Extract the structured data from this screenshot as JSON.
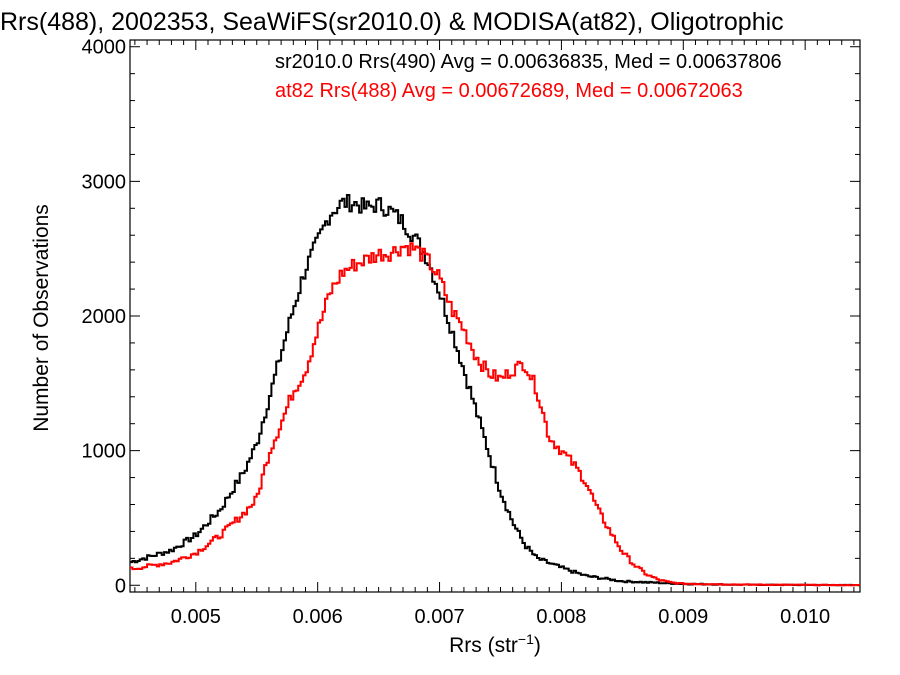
{
  "chart_data": {
    "type": "line",
    "style": "step histogram",
    "title": "Rrs(488), 2002353, SeaWiFS(sr2010.0) & MODISA(at82), Oligotrophic",
    "xlabel": {
      "base": "Rrs (str",
      "sup": "−1",
      "close": ")"
    },
    "ylabel": "Number of Observations",
    "xlim": [
      0.00446,
      0.01045
    ],
    "ylim": [
      -50,
      4050
    ],
    "xticks": [
      0.005,
      0.006,
      0.007,
      0.008,
      0.009,
      0.01
    ],
    "xtick_labels": [
      "0.005",
      "0.006",
      "0.007",
      "0.008",
      "0.009",
      "0.010"
    ],
    "yticks": [
      0,
      1000,
      2000,
      3000,
      4000
    ],
    "ytick_labels": [
      "0",
      "1000",
      "2000",
      "3000",
      "4000"
    ],
    "grid": false,
    "legend_position": "top-right",
    "series": [
      {
        "name": "sr2010.0 Rrs(490) Avg = 0.00636835, Med = 0.00637806",
        "color": "#000000",
        "points": [
          [
            0.00446,
            170
          ],
          [
            0.0048,
            260
          ],
          [
            0.005,
            370
          ],
          [
            0.0052,
            560
          ],
          [
            0.0054,
            850
          ],
          [
            0.0055,
            1050
          ],
          [
            0.0056,
            1380
          ],
          [
            0.0057,
            1720
          ],
          [
            0.0058,
            2050
          ],
          [
            0.0059,
            2350
          ],
          [
            0.006,
            2550
          ],
          [
            0.0061,
            2760
          ],
          [
            0.0062,
            2840
          ],
          [
            0.0063,
            2840
          ],
          [
            0.0064,
            2800
          ],
          [
            0.0065,
            2830
          ],
          [
            0.0066,
            2780
          ],
          [
            0.0067,
            2700
          ],
          [
            0.0068,
            2580
          ],
          [
            0.0069,
            2430
          ],
          [
            0.007,
            2180
          ],
          [
            0.0071,
            1900
          ],
          [
            0.0072,
            1600
          ],
          [
            0.0073,
            1300
          ],
          [
            0.0074,
            1000
          ],
          [
            0.0075,
            700
          ],
          [
            0.0076,
            470
          ],
          [
            0.0077,
            300
          ],
          [
            0.0078,
            200
          ],
          [
            0.008,
            130
          ],
          [
            0.0082,
            70
          ],
          [
            0.0085,
            30
          ],
          [
            0.009,
            10
          ],
          [
            0.0095,
            4
          ],
          [
            0.01045,
            1
          ]
        ]
      },
      {
        "name": "at82 Rrs(488) Avg = 0.00672689, Med = 0.00672063",
        "color": "#ff0000",
        "points": [
          [
            0.00446,
            120
          ],
          [
            0.0048,
            170
          ],
          [
            0.005,
            240
          ],
          [
            0.0052,
            370
          ],
          [
            0.0054,
            540
          ],
          [
            0.0055,
            640
          ],
          [
            0.0056,
            980
          ],
          [
            0.0057,
            1200
          ],
          [
            0.0058,
            1440
          ],
          [
            0.0059,
            1590
          ],
          [
            0.006,
            1890
          ],
          [
            0.0061,
            2170
          ],
          [
            0.0062,
            2320
          ],
          [
            0.0063,
            2380
          ],
          [
            0.0064,
            2420
          ],
          [
            0.0065,
            2460
          ],
          [
            0.0066,
            2470
          ],
          [
            0.0067,
            2520
          ],
          [
            0.0068,
            2500
          ],
          [
            0.0069,
            2420
          ],
          [
            0.007,
            2280
          ],
          [
            0.0071,
            2050
          ],
          [
            0.0072,
            1900
          ],
          [
            0.0073,
            1700
          ],
          [
            0.0074,
            1580
          ],
          [
            0.0075,
            1530
          ],
          [
            0.0076,
            1600
          ],
          [
            0.0077,
            1650
          ],
          [
            0.0078,
            1450
          ],
          [
            0.0079,
            1100
          ],
          [
            0.008,
            1000
          ],
          [
            0.0081,
            900
          ],
          [
            0.0082,
            770
          ],
          [
            0.0083,
            560
          ],
          [
            0.0084,
            400
          ],
          [
            0.0085,
            250
          ],
          [
            0.0086,
            150
          ],
          [
            0.0087,
            80
          ],
          [
            0.0088,
            40
          ],
          [
            0.0089,
            20
          ],
          [
            0.009,
            12
          ],
          [
            0.0095,
            5
          ],
          [
            0.01045,
            1
          ]
        ]
      }
    ]
  }
}
